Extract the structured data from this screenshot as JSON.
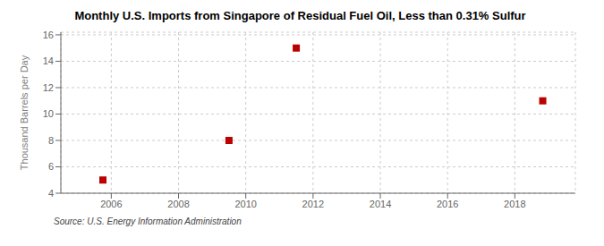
{
  "chart_data": {
    "type": "scatter",
    "title": "Monthly U.S. Imports from Singapore of Residual Fuel Oil, Less than 0.31% Sulfur",
    "ylabel": "Thousand Barrels per Day",
    "annotations": [
      "Source: U.S. Energy Information Administration"
    ],
    "x": [
      2005.75,
      2009.5,
      2011.5,
      2018.83
    ],
    "values": [
      5.0,
      8.0,
      15.0,
      11.0
    ],
    "color": "#bb0000",
    "marker": "square",
    "xlim": [
      2004.5,
      2019.8
    ],
    "ylim": [
      4,
      16.2
    ],
    "xticks": [
      2006,
      2008,
      2010,
      2012,
      2014,
      2016,
      2018
    ],
    "yticks": [
      4,
      6,
      8,
      10,
      12,
      14,
      16
    ],
    "grid": true
  }
}
